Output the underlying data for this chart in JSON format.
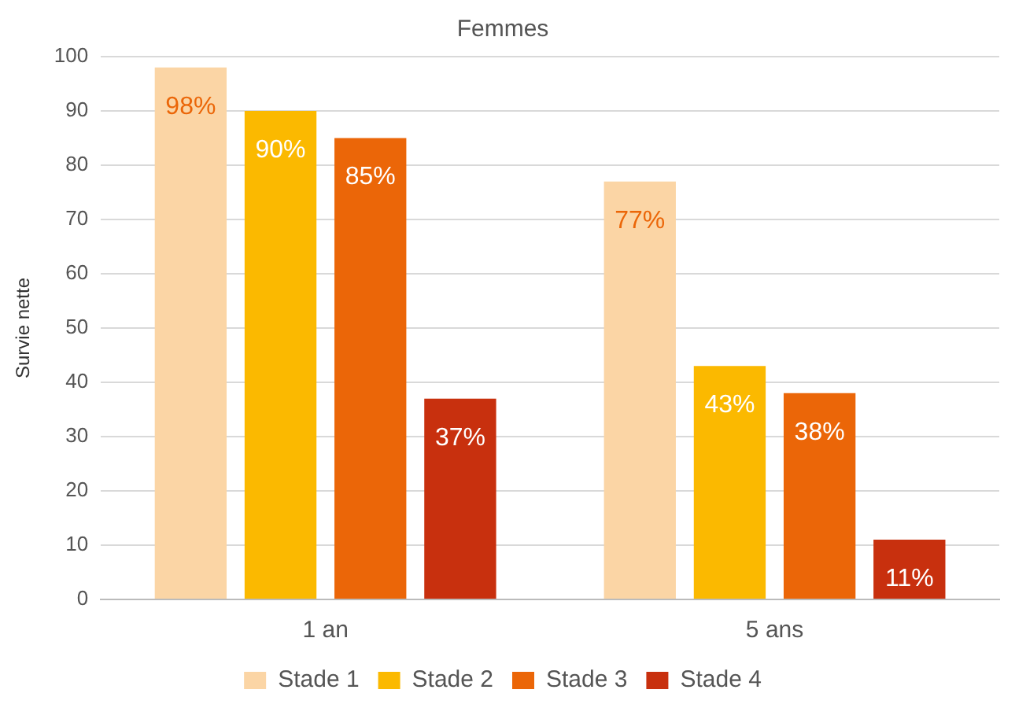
{
  "chart_data": {
    "type": "bar",
    "title": "Femmes",
    "ylabel": "Survie nette",
    "categories": [
      "1 an",
      "5 ans"
    ],
    "series": [
      {
        "name": "Stade 1",
        "color": "#fbd5a5",
        "values": [
          98,
          77
        ],
        "value_labels": [
          "98%",
          "77%"
        ]
      },
      {
        "name": "Stade 2",
        "color": "#fbb900",
        "values": [
          90,
          43
        ],
        "value_labels": [
          "90%",
          "43%"
        ]
      },
      {
        "name": "Stade 3",
        "color": "#eb6608",
        "values": [
          85,
          38
        ],
        "value_labels": [
          "85%",
          "38%"
        ]
      },
      {
        "name": "Stade 4",
        "color": "#c8300e",
        "values": [
          37,
          11
        ],
        "value_labels": [
          "37%",
          "11%"
        ]
      }
    ],
    "ylim": [
      0,
      100
    ],
    "yticks": [
      0,
      10,
      20,
      30,
      40,
      50,
      60,
      70,
      80,
      90,
      100
    ],
    "grid": "y",
    "legend": "bottom"
  }
}
